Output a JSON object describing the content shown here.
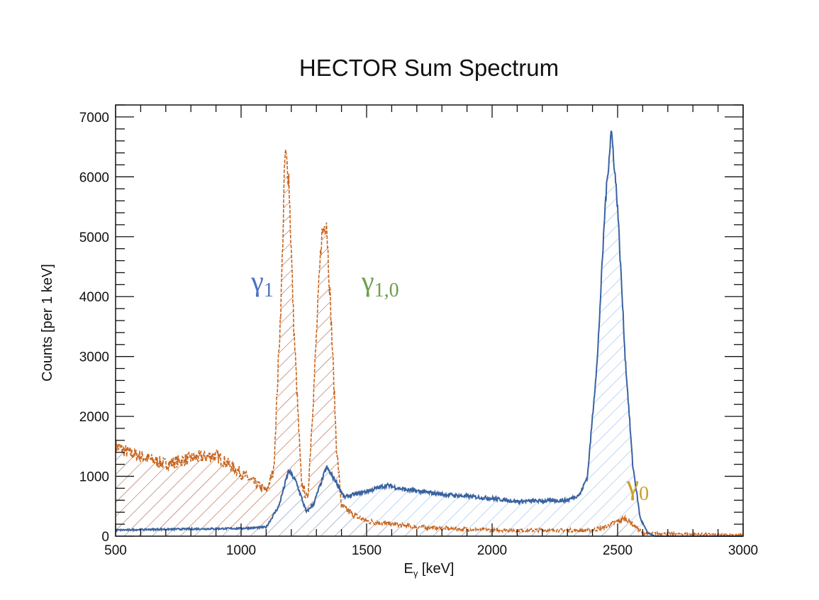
{
  "chart_data": {
    "type": "line",
    "title": "HECTOR Sum Spectrum",
    "xlabel": "E",
    "xlabel_sub": "γ",
    "xlabel_unit": " [keV]",
    "ylabel": "Counts [per 1 keV]",
    "xlim": [
      500,
      3000
    ],
    "ylim": [
      0,
      7200
    ],
    "xticks": [
      500,
      1000,
      1500,
      2000,
      2500,
      3000
    ],
    "yticks": [
      0,
      1000,
      2000,
      3000,
      4000,
      5000,
      6000,
      7000
    ],
    "grid": false,
    "series": [
      {
        "name": "sum",
        "color": "#3a63a0",
        "fill": "#9cc3ea",
        "x": [
          500,
          600,
          800,
          1000,
          1100,
          1150,
          1190,
          1220,
          1260,
          1290,
          1340,
          1380,
          1410,
          1500,
          1580,
          1650,
          1800,
          2000,
          2100,
          2300,
          2350,
          2380,
          2420,
          2450,
          2475,
          2500,
          2530,
          2560,
          2590,
          2620,
          2650,
          3000
        ],
        "y": [
          100,
          110,
          120,
          130,
          150,
          500,
          1100,
          900,
          400,
          550,
          1150,
          900,
          650,
          750,
          850,
          780,
          700,
          630,
          580,
          600,
          700,
          1000,
          3000,
          5500,
          6800,
          5500,
          3000,
          1200,
          300,
          50,
          0,
          0
        ]
      },
      {
        "name": "individual",
        "color": "#c8651e",
        "fill": "#b0552a",
        "x": [
          500,
          550,
          700,
          800,
          900,
          950,
          1050,
          1100,
          1130,
          1160,
          1175,
          1190,
          1210,
          1240,
          1265,
          1290,
          1320,
          1340,
          1360,
          1380,
          1400,
          1450,
          1500,
          1700,
          2000,
          2400,
          2450,
          2500,
          2530,
          2560,
          2600,
          3000
        ],
        "y": [
          1500,
          1400,
          1200,
          1300,
          1350,
          1200,
          900,
          750,
          1100,
          4000,
          6400,
          6000,
          3500,
          900,
          600,
          2500,
          5000,
          5300,
          3500,
          1500,
          500,
          350,
          250,
          150,
          100,
          100,
          150,
          250,
          300,
          200,
          50,
          20
        ]
      }
    ],
    "annotations": [
      {
        "text": "γ",
        "sub": "1",
        "color": "#4a72c4",
        "x": 1040,
        "y": 4100
      },
      {
        "text": "γ",
        "sub": "1,0",
        "color": "#6e9e4a",
        "x": 1480,
        "y": 4100
      },
      {
        "text": "γ",
        "sub": "0",
        "color": "#c9a227",
        "x": 2535,
        "y": 700
      }
    ]
  }
}
